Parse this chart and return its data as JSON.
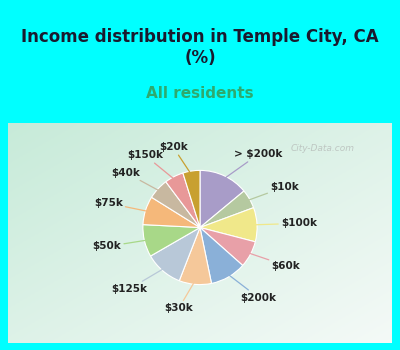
{
  "title": "Income distribution in Temple City, CA\n(%)",
  "subtitle": "All residents",
  "title_fontsize": 12,
  "subtitle_fontsize": 11,
  "labels": [
    "> $200k",
    "$10k",
    "$100k",
    "$60k",
    "$200k",
    "$30k",
    "$125k",
    "$50k",
    "$75k",
    "$40k",
    "$150k",
    "$20k"
  ],
  "values": [
    13.0,
    5.0,
    9.0,
    7.0,
    9.5,
    8.5,
    10.0,
    8.5,
    7.5,
    5.5,
    5.0,
    4.5
  ],
  "colors": [
    "#a89cc8",
    "#b5c9a0",
    "#f0e88a",
    "#e8a0a8",
    "#8ab0d8",
    "#f5c89a",
    "#b8c8d8",
    "#a8d888",
    "#f5b87a",
    "#c8b8a0",
    "#e89898",
    "#c8a030"
  ],
  "background_color": "#00ffff",
  "chart_bg_color": "#d8eede",
  "watermark": "City-Data.com",
  "label_fontsize": 7.5
}
